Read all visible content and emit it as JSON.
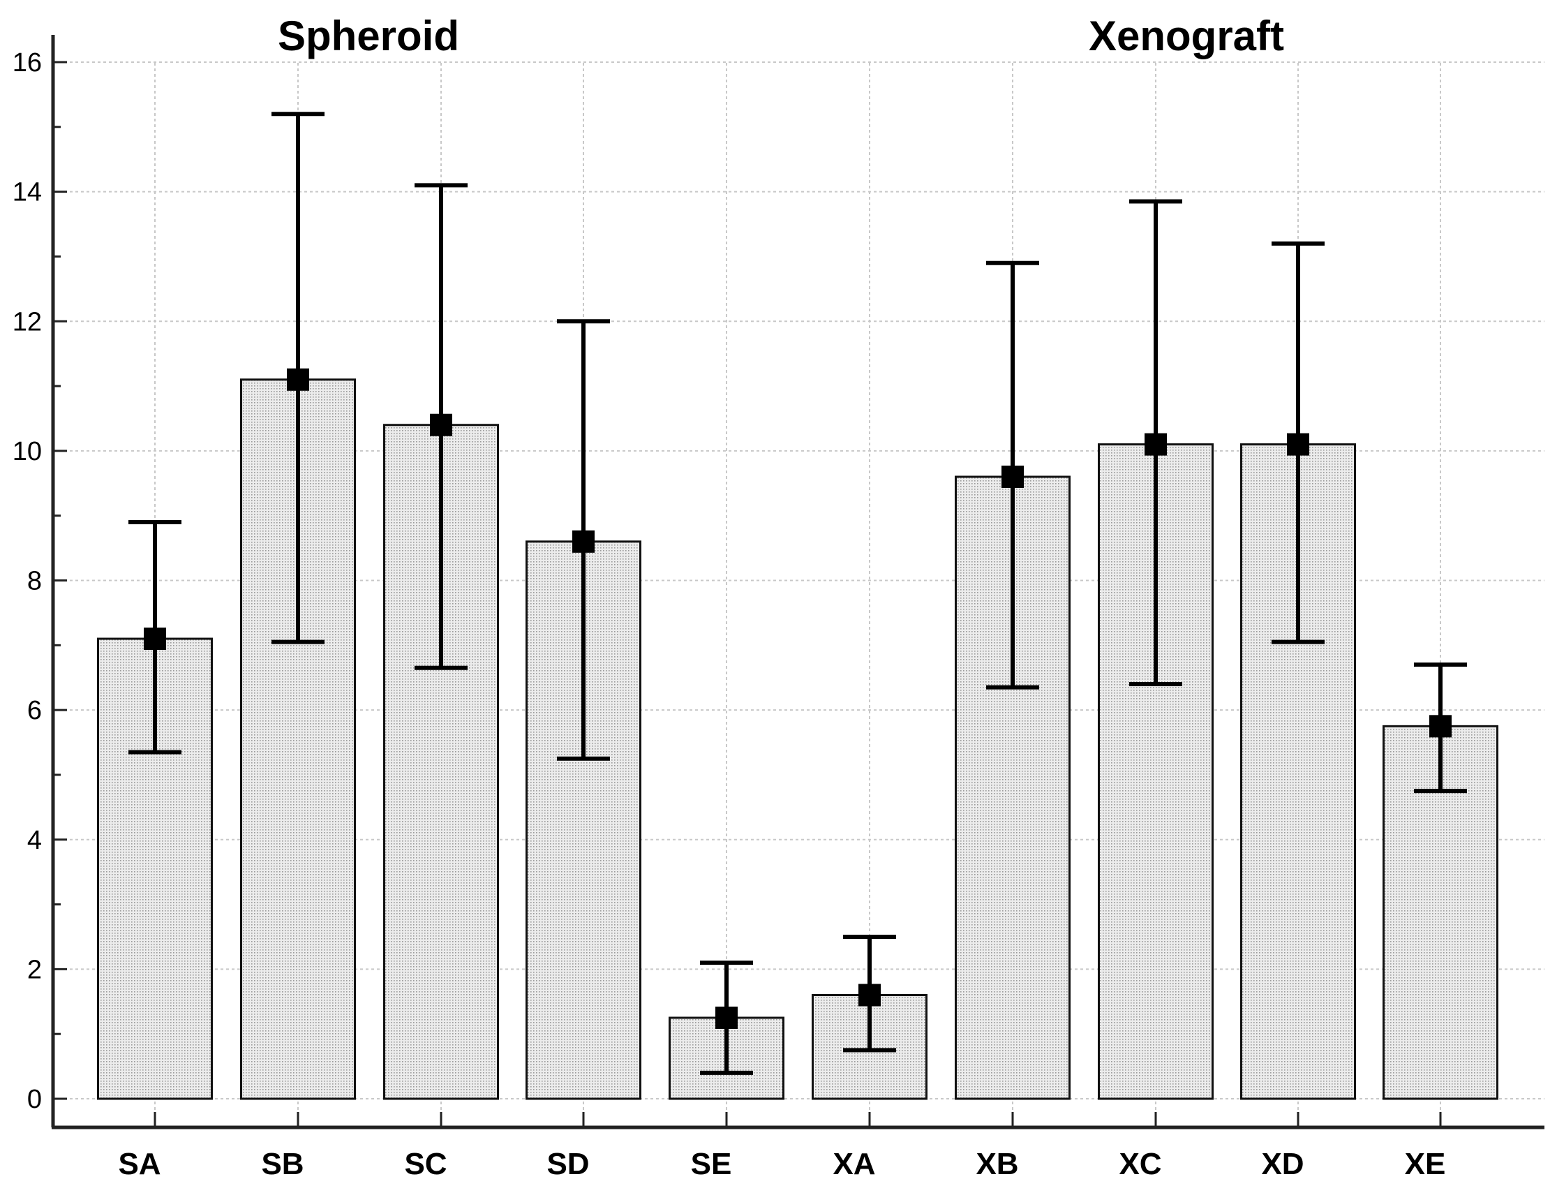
{
  "chart_data": {
    "type": "bar",
    "title": "",
    "xlabel": "",
    "ylabel": "",
    "ylim": [
      0,
      16
    ],
    "yticks": [
      0,
      2,
      4,
      6,
      8,
      10,
      12,
      14,
      16
    ],
    "grid": true,
    "categories": [
      "SA",
      "SB",
      "SC",
      "SD",
      "SE",
      "XA",
      "XB",
      "XC",
      "XD",
      "XE"
    ],
    "values": [
      7.1,
      11.1,
      10.4,
      8.6,
      1.25,
      1.6,
      9.6,
      10.1,
      10.1,
      5.75
    ],
    "error_low": [
      5.35,
      7.05,
      6.65,
      5.25,
      0.4,
      0.75,
      6.35,
      6.4,
      7.05,
      4.75
    ],
    "error_high": [
      8.9,
      15.2,
      14.1,
      12.0,
      2.1,
      2.5,
      12.9,
      13.85,
      13.2,
      6.7
    ],
    "groups": [
      {
        "name": "Spheroid",
        "categories": [
          "SA",
          "SB",
          "SC",
          "SD",
          "SE"
        ]
      },
      {
        "name": "Xenograft",
        "categories": [
          "XA",
          "XB",
          "XC",
          "XD",
          "XE"
        ]
      }
    ],
    "group_titles": [
      "Spheroid",
      "Xenograft"
    ]
  },
  "colors": {
    "bar_fill": "#ececec",
    "bar_stipple": "#9a9a9a",
    "grid": "#c8c8c8",
    "axis": "#222222",
    "error": "#000000"
  }
}
